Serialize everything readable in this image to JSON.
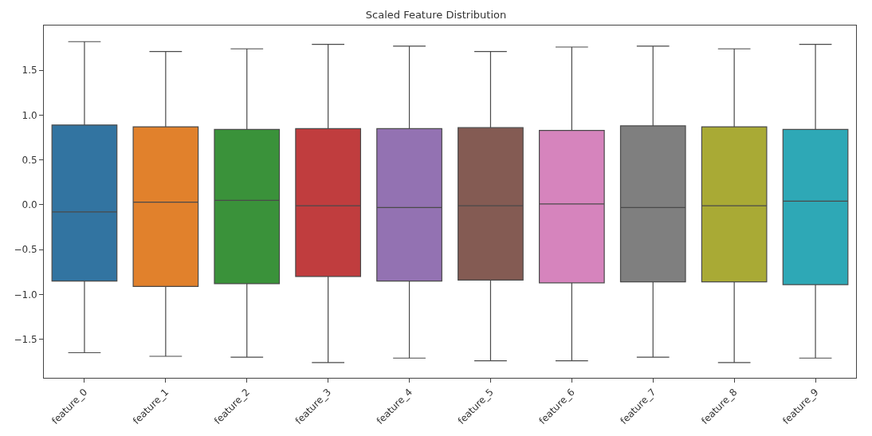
{
  "chart_data": {
    "type": "box",
    "title": "Scaled Feature Distribution",
    "categories": [
      "feature_0",
      "feature_1",
      "feature_2",
      "feature_3",
      "feature_4",
      "feature_5",
      "feature_6",
      "feature_7",
      "feature_8",
      "feature_9"
    ],
    "colors": [
      "#3274a1",
      "#e1812c",
      "#3a923a",
      "#c03d3e",
      "#9372b2",
      "#845b53",
      "#d684bd",
      "#7f7f7f",
      "#a9aa35",
      "#2ea8b6"
    ],
    "boxes": [
      {
        "low": -1.65,
        "q1": -0.85,
        "median": -0.08,
        "q3": 0.89,
        "high": 1.82
      },
      {
        "low": -1.69,
        "q1": -0.91,
        "median": 0.03,
        "q3": 0.87,
        "high": 1.71
      },
      {
        "low": -1.7,
        "q1": -0.88,
        "median": 0.05,
        "q3": 0.84,
        "high": 1.74
      },
      {
        "low": -1.76,
        "q1": -0.8,
        "median": -0.01,
        "q3": 0.85,
        "high": 1.79
      },
      {
        "low": -1.71,
        "q1": -0.85,
        "median": -0.03,
        "q3": 0.85,
        "high": 1.77
      },
      {
        "low": -1.74,
        "q1": -0.84,
        "median": -0.01,
        "q3": 0.86,
        "high": 1.71
      },
      {
        "low": -1.74,
        "q1": -0.87,
        "median": 0.01,
        "q3": 0.83,
        "high": 1.76
      },
      {
        "low": -1.7,
        "q1": -0.86,
        "median": -0.03,
        "q3": 0.88,
        "high": 1.77
      },
      {
        "low": -1.76,
        "q1": -0.86,
        "median": -0.01,
        "q3": 0.87,
        "high": 1.74
      },
      {
        "low": -1.71,
        "q1": -0.89,
        "median": 0.04,
        "q3": 0.84,
        "high": 1.79
      }
    ],
    "ylim": [
      -1.93,
      2.0
    ],
    "yticks": [
      {
        "value": -1.5,
        "label": "−1.5"
      },
      {
        "value": -1,
        "label": "−1.0"
      },
      {
        "value": -0.5,
        "label": "−0.5"
      },
      {
        "value": 0,
        "label": "0.0"
      },
      {
        "value": 0.5,
        "label": "0.5"
      },
      {
        "value": 1,
        "label": "1.0"
      },
      {
        "value": 1.5,
        "label": "1.5"
      }
    ]
  }
}
